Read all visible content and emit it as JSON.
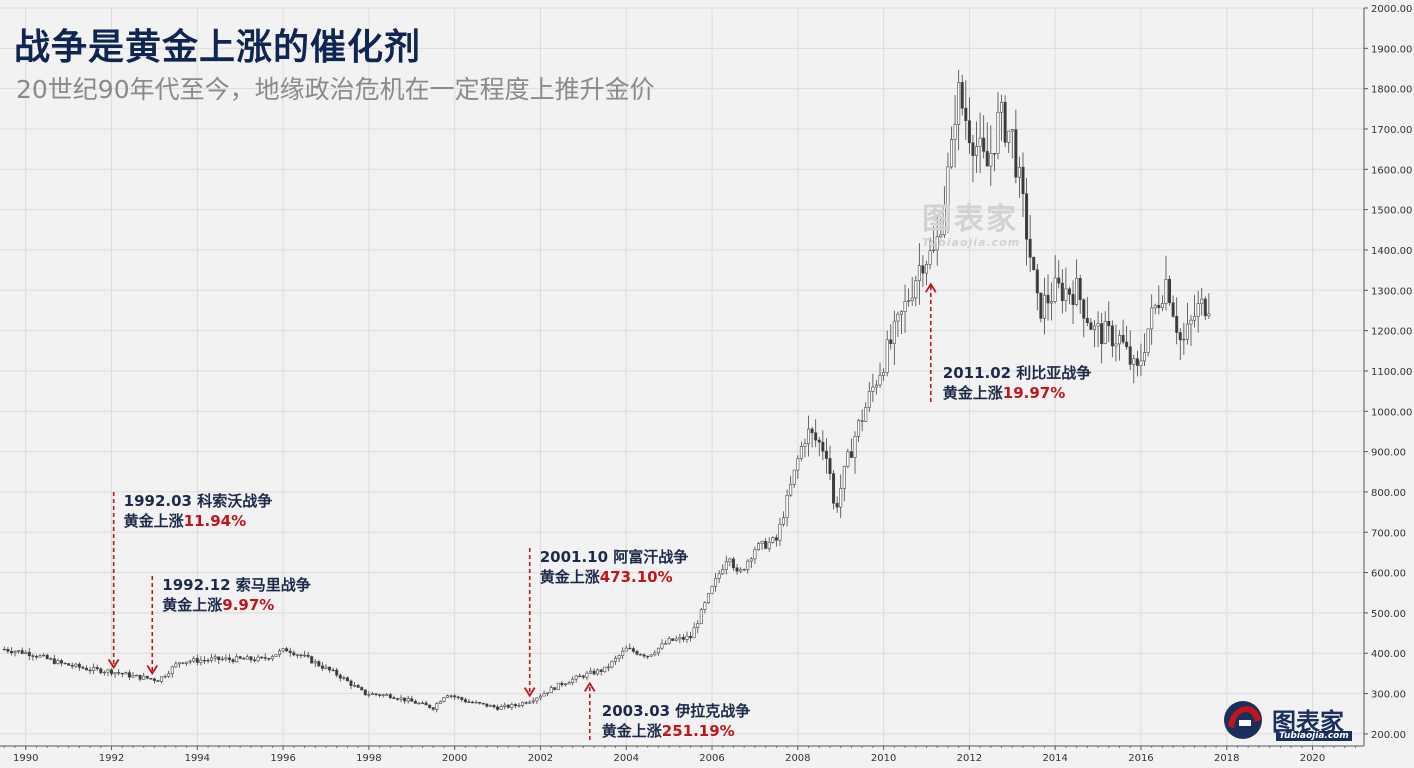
{
  "title": "战争是黄金上涨的催化剂",
  "subtitle": "20世纪90年代至今，地缘政治危机在一定程度上推升金价",
  "watermark": "图表家",
  "watermark_sub": "Tubiaojia.com",
  "logo": {
    "text": "图表家",
    "sub": "Tubiaojia.com"
  },
  "colors": {
    "background": "#f2f2f2",
    "candle_up": "#ffffff",
    "candle_down": "#3a3a3a",
    "candle_wick": "#444444",
    "arrow": "#c0151b",
    "title": "#0f2652",
    "grid": "#dcdcdc"
  },
  "chart_data": {
    "type": "candlestick",
    "title": "",
    "xlabel": "",
    "ylabel": "",
    "xlim": [
      1989.4,
      2021.2
    ],
    "ylim": [
      170,
      2000
    ],
    "y_axis_position": "right",
    "grid": true,
    "x_ticks": [
      "1990",
      "1992",
      "1994",
      "1996",
      "1998",
      "2000",
      "2002",
      "2004",
      "2006",
      "2008",
      "2010",
      "2012",
      "2014",
      "2016",
      "2018",
      "2020"
    ],
    "y_ticks": [
      "200.00",
      "300.00",
      "400.00",
      "500.00",
      "600.00",
      "700.00",
      "800.00",
      "900.00",
      "1000.00",
      "1100.00",
      "1200.00",
      "1300.00",
      "1400.00",
      "1500.00",
      "1600.00",
      "1700.00",
      "1800.00",
      "1900.00",
      "2000.00"
    ],
    "series_anchor_points": {
      "x": [
        1989.5,
        1990.1,
        1990.8,
        1991.5,
        1992.0,
        1992.5,
        1993.1,
        1993.6,
        1994.5,
        1995.5,
        1996.1,
        1996.6,
        1997.3,
        1997.9,
        1998.5,
        1999.5,
        1999.8,
        2000.3,
        2001.0,
        2001.4,
        2001.8,
        2002.5,
        2003.0,
        2003.5,
        2004.0,
        2004.5,
        2005.0,
        2005.5,
        2006.0,
        2006.4,
        2006.6,
        2007.0,
        2007.5,
        2008.0,
        2008.2,
        2008.7,
        2008.85,
        2009.3,
        2009.9,
        2010.4,
        2010.9,
        2011.2,
        2011.6,
        2011.7,
        2012.0,
        2012.4,
        2012.7,
        2013.0,
        2013.4,
        2013.6,
        2014.0,
        2014.5,
        2014.9,
        2015.5,
        2015.9,
        2016.2,
        2016.6,
        2016.95,
        2017.3,
        2017.6
      ],
      "y": [
        410,
        400,
        375,
        360,
        355,
        343,
        334,
        380,
        385,
        385,
        410,
        385,
        345,
        300,
        295,
        265,
        300,
        280,
        265,
        270,
        285,
        325,
        345,
        360,
        410,
        395,
        430,
        440,
        560,
        650,
        590,
        660,
        680,
        880,
        950,
        900,
        750,
        930,
        1100,
        1230,
        1380,
        1390,
        1650,
        1800,
        1700,
        1600,
        1730,
        1680,
        1400,
        1250,
        1300,
        1300,
        1200,
        1180,
        1090,
        1220,
        1330,
        1160,
        1250,
        1275
      ]
    },
    "annotations": [
      {
        "date": "1992.03",
        "event": "科索沃战争",
        "gain_label": "黄金上涨",
        "gain": "11.94%",
        "x": 1992.05,
        "price": 355,
        "direction": "down"
      },
      {
        "date": "1992.12",
        "event": "索马里战争",
        "gain_label": "黄金上涨",
        "gain": "9.97%",
        "x": 1992.95,
        "price": 340,
        "direction": "down"
      },
      {
        "date": "2001.10",
        "event": "阿富汗战争",
        "gain_label": "黄金上涨",
        "gain": "473.10%",
        "x": 2001.75,
        "price": 285,
        "direction": "down"
      },
      {
        "date": "2003.03",
        "event": "伊拉克战争",
        "gain_label": "黄金上涨",
        "gain": "251.19%",
        "x": 2003.15,
        "price": 340,
        "direction": "up"
      },
      {
        "date": "2011.02",
        "event": "利比亚战争",
        "gain_label": "黄金上涨",
        "gain": "19.97%",
        "x": 2011.1,
        "price": 1330,
        "direction": "up"
      }
    ]
  }
}
